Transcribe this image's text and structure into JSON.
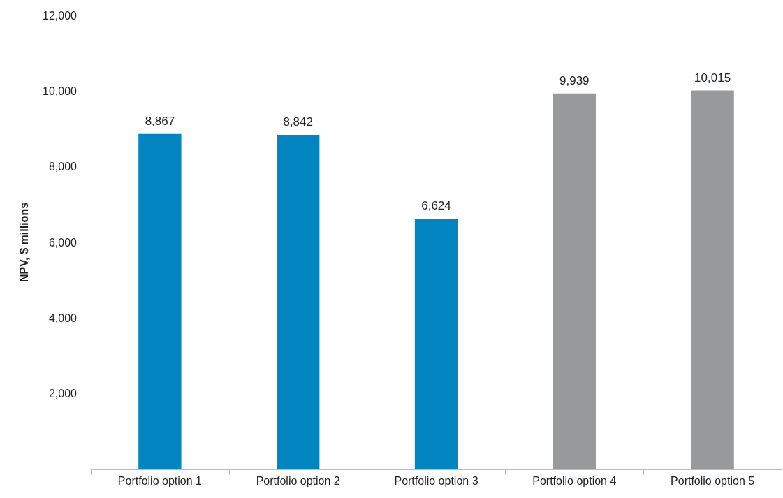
{
  "chart_data": {
    "type": "bar",
    "ylabel": "NPV, $ millions",
    "categories": [
      "Portfolio option 1",
      "Portfolio option 2",
      "Portfolio option 3",
      "Portfolio option 4",
      "Portfolio option 5"
    ],
    "values": [
      8867,
      8842,
      6624,
      9939,
      10015
    ],
    "colors": [
      "#0085c0",
      "#0085c0",
      "#0085c0",
      "#98999b",
      "#98999b"
    ],
    "ylim": [
      0,
      12000
    ],
    "yticks": [
      {
        "value": 2000,
        "label": "2,000"
      },
      {
        "value": 4000,
        "label": "4,000"
      },
      {
        "value": 6000,
        "label": "6,000"
      },
      {
        "value": 8000,
        "label": "8,000"
      },
      {
        "value": 10000,
        "label": "10,000"
      },
      {
        "value": 12000,
        "label": "12,000"
      }
    ],
    "value_labels": [
      "8,867",
      "8,842",
      "6,624",
      "9,939",
      "10,015"
    ],
    "grid": false
  }
}
